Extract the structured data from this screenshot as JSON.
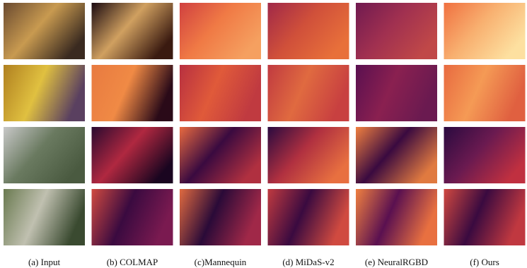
{
  "figure": {
    "captions": [
      "(a) Input",
      "(b) COLMAP",
      "(c)Mannequin",
      "(d) MiDaS-v2",
      "(e) NeuralRGBD",
      "(f) Ours"
    ]
  }
}
